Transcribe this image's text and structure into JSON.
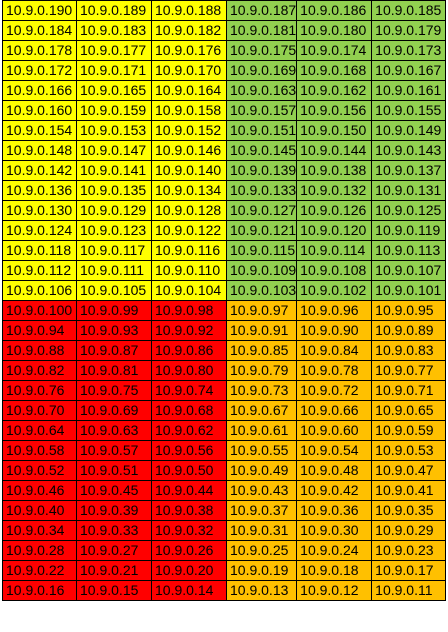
{
  "palette": {
    "yellow": "#ffff00",
    "green": "#92d050",
    "red": "#ff0000",
    "orange": "#ffc000"
  },
  "rows": [
    {
      "color_left": "yellow",
      "color_right": "green",
      "cells": [
        "10.9.0.190",
        "10.9.0.189",
        "10.9.0.188",
        "10.9.0.187",
        "10.9.0.186",
        "10.9.0.185"
      ]
    },
    {
      "color_left": "yellow",
      "color_right": "green",
      "cells": [
        "10.9.0.184",
        "10.9.0.183",
        "10.9.0.182",
        "10.9.0.181",
        "10.9.0.180",
        "10.9.0.179"
      ]
    },
    {
      "color_left": "yellow",
      "color_right": "green",
      "cells": [
        "10.9.0.178",
        "10.9.0.177",
        "10.9.0.176",
        "10.9.0.175",
        "10.9.0.174",
        "10.9.0.173"
      ]
    },
    {
      "color_left": "yellow",
      "color_right": "green",
      "cells": [
        "10.9.0.172",
        "10.9.0.171",
        "10.9.0.170",
        "10.9.0.169",
        "10.9.0.168",
        "10.9.0.167"
      ]
    },
    {
      "color_left": "yellow",
      "color_right": "green",
      "cells": [
        "10.9.0.166",
        "10.9.0.165",
        "10.9.0.164",
        "10.9.0.163",
        "10.9.0.162",
        "10.9.0.161"
      ]
    },
    {
      "color_left": "yellow",
      "color_right": "green",
      "cells": [
        "10.9.0.160",
        "10.9.0.159",
        "10.9.0.158",
        "10.9.0.157",
        "10.9.0.156",
        "10.9.0.155"
      ]
    },
    {
      "color_left": "yellow",
      "color_right": "green",
      "cells": [
        "10.9.0.154",
        "10.9.0.153",
        "10.9.0.152",
        "10.9.0.151",
        "10.9.0.150",
        "10.9.0.149"
      ]
    },
    {
      "color_left": "yellow",
      "color_right": "green",
      "cells": [
        "10.9.0.148",
        "10.9.0.147",
        "10.9.0.146",
        "10.9.0.145",
        "10.9.0.144",
        "10.9.0.143"
      ]
    },
    {
      "color_left": "yellow",
      "color_right": "green",
      "cells": [
        "10.9.0.142",
        "10.9.0.141",
        "10.9.0.140",
        "10.9.0.139",
        "10.9.0.138",
        "10.9.0.137"
      ]
    },
    {
      "color_left": "yellow",
      "color_right": "green",
      "cells": [
        "10.9.0.136",
        "10.9.0.135",
        "10.9.0.134",
        "10.9.0.133",
        "10.9.0.132",
        "10.9.0.131"
      ]
    },
    {
      "color_left": "yellow",
      "color_right": "green",
      "cells": [
        "10.9.0.130",
        "10.9.0.129",
        "10.9.0.128",
        "10.9.0.127",
        "10.9.0.126",
        "10.9.0.125"
      ]
    },
    {
      "color_left": "yellow",
      "color_right": "green",
      "cells": [
        "10.9.0.124",
        "10.9.0.123",
        "10.9.0.122",
        "10.9.0.121",
        "10.9.0.120",
        "10.9.0.119"
      ]
    },
    {
      "color_left": "yellow",
      "color_right": "green",
      "cells": [
        "10.9.0.118",
        "10.9.0.117",
        "10.9.0.116",
        "10.9.0.115",
        "10.9.0.114",
        "10.9.0.113"
      ]
    },
    {
      "color_left": "yellow",
      "color_right": "green",
      "cells": [
        "10.9.0.112",
        "10.9.0.111",
        "10.9.0.110",
        "10.9.0.109",
        "10.9.0.108",
        "10.9.0.107"
      ]
    },
    {
      "color_left": "yellow",
      "color_right": "green",
      "cells": [
        "10.9.0.106",
        "10.9.0.105",
        "10.9.0.104",
        "10.9.0.103",
        "10.9.0.102",
        "10.9.0.101"
      ]
    },
    {
      "color_left": "red",
      "color_right": "orange",
      "cells": [
        "10.9.0.100",
        "10.9.0.99",
        "10.9.0.98",
        "10.9.0.97",
        "10.9.0.96",
        "10.9.0.95"
      ]
    },
    {
      "color_left": "red",
      "color_right": "orange",
      "cells": [
        "10.9.0.94",
        "10.9.0.93",
        "10.9.0.92",
        "10.9.0.91",
        "10.9.0.90",
        "10.9.0.89"
      ]
    },
    {
      "color_left": "red",
      "color_right": "orange",
      "cells": [
        "10.9.0.88",
        "10.9.0.87",
        "10.9.0.86",
        "10.9.0.85",
        "10.9.0.84",
        "10.9.0.83"
      ]
    },
    {
      "color_left": "red",
      "color_right": "orange",
      "cells": [
        "10.9.0.82",
        "10.9.0.81",
        "10.9.0.80",
        "10.9.0.79",
        "10.9.0.78",
        "10.9.0.77"
      ]
    },
    {
      "color_left": "red",
      "color_right": "orange",
      "cells": [
        "10.9.0.76",
        "10.9.0.75",
        "10.9.0.74",
        "10.9.0.73",
        "10.9.0.72",
        "10.9.0.71"
      ]
    },
    {
      "color_left": "red",
      "color_right": "orange",
      "cells": [
        "10.9.0.70",
        "10.9.0.69",
        "10.9.0.68",
        "10.9.0.67",
        "10.9.0.66",
        "10.9.0.65"
      ]
    },
    {
      "color_left": "red",
      "color_right": "orange",
      "cells": [
        "10.9.0.64",
        "10.9.0.63",
        "10.9.0.62",
        "10.9.0.61",
        "10.9.0.60",
        "10.9.0.59"
      ]
    },
    {
      "color_left": "red",
      "color_right": "orange",
      "cells": [
        "10.9.0.58",
        "10.9.0.57",
        "10.9.0.56",
        "10.9.0.55",
        "10.9.0.54",
        "10.9.0.53"
      ]
    },
    {
      "color_left": "red",
      "color_right": "orange",
      "cells": [
        "10.9.0.52",
        "10.9.0.51",
        "10.9.0.50",
        "10.9.0.49",
        "10.9.0.48",
        "10.9.0.47"
      ]
    },
    {
      "color_left": "red",
      "color_right": "orange",
      "cells": [
        "10.9.0.46",
        "10.9.0.45",
        "10.9.0.44",
        "10.9.0.43",
        "10.9.0.42",
        "10.9.0.41"
      ]
    },
    {
      "color_left": "red",
      "color_right": "orange",
      "cells": [
        "10.9.0.40",
        "10.9.0.39",
        "10.9.0.38",
        "10.9.0.37",
        "10.9.0.36",
        "10.9.0.35"
      ]
    },
    {
      "color_left": "red",
      "color_right": "orange",
      "cells": [
        "10.9.0.34",
        "10.9.0.33",
        "10.9.0.32",
        "10.9.0.31",
        "10.9.0.30",
        "10.9.0.29"
      ]
    },
    {
      "color_left": "red",
      "color_right": "orange",
      "cells": [
        "10.9.0.28",
        "10.9.0.27",
        "10.9.0.26",
        "10.9.0.25",
        "10.9.0.24",
        "10.9.0.23"
      ]
    },
    {
      "color_left": "red",
      "color_right": "orange",
      "cells": [
        "10.9.0.22",
        "10.9.0.21",
        "10.9.0.20",
        "10.9.0.19",
        "10.9.0.18",
        "10.9.0.17"
      ]
    },
    {
      "color_left": "red",
      "color_right": "orange",
      "cells": [
        "10.9.0.16",
        "10.9.0.15",
        "10.9.0.14",
        "10.9.0.13",
        "10.9.0.12",
        "10.9.0.11"
      ]
    }
  ]
}
